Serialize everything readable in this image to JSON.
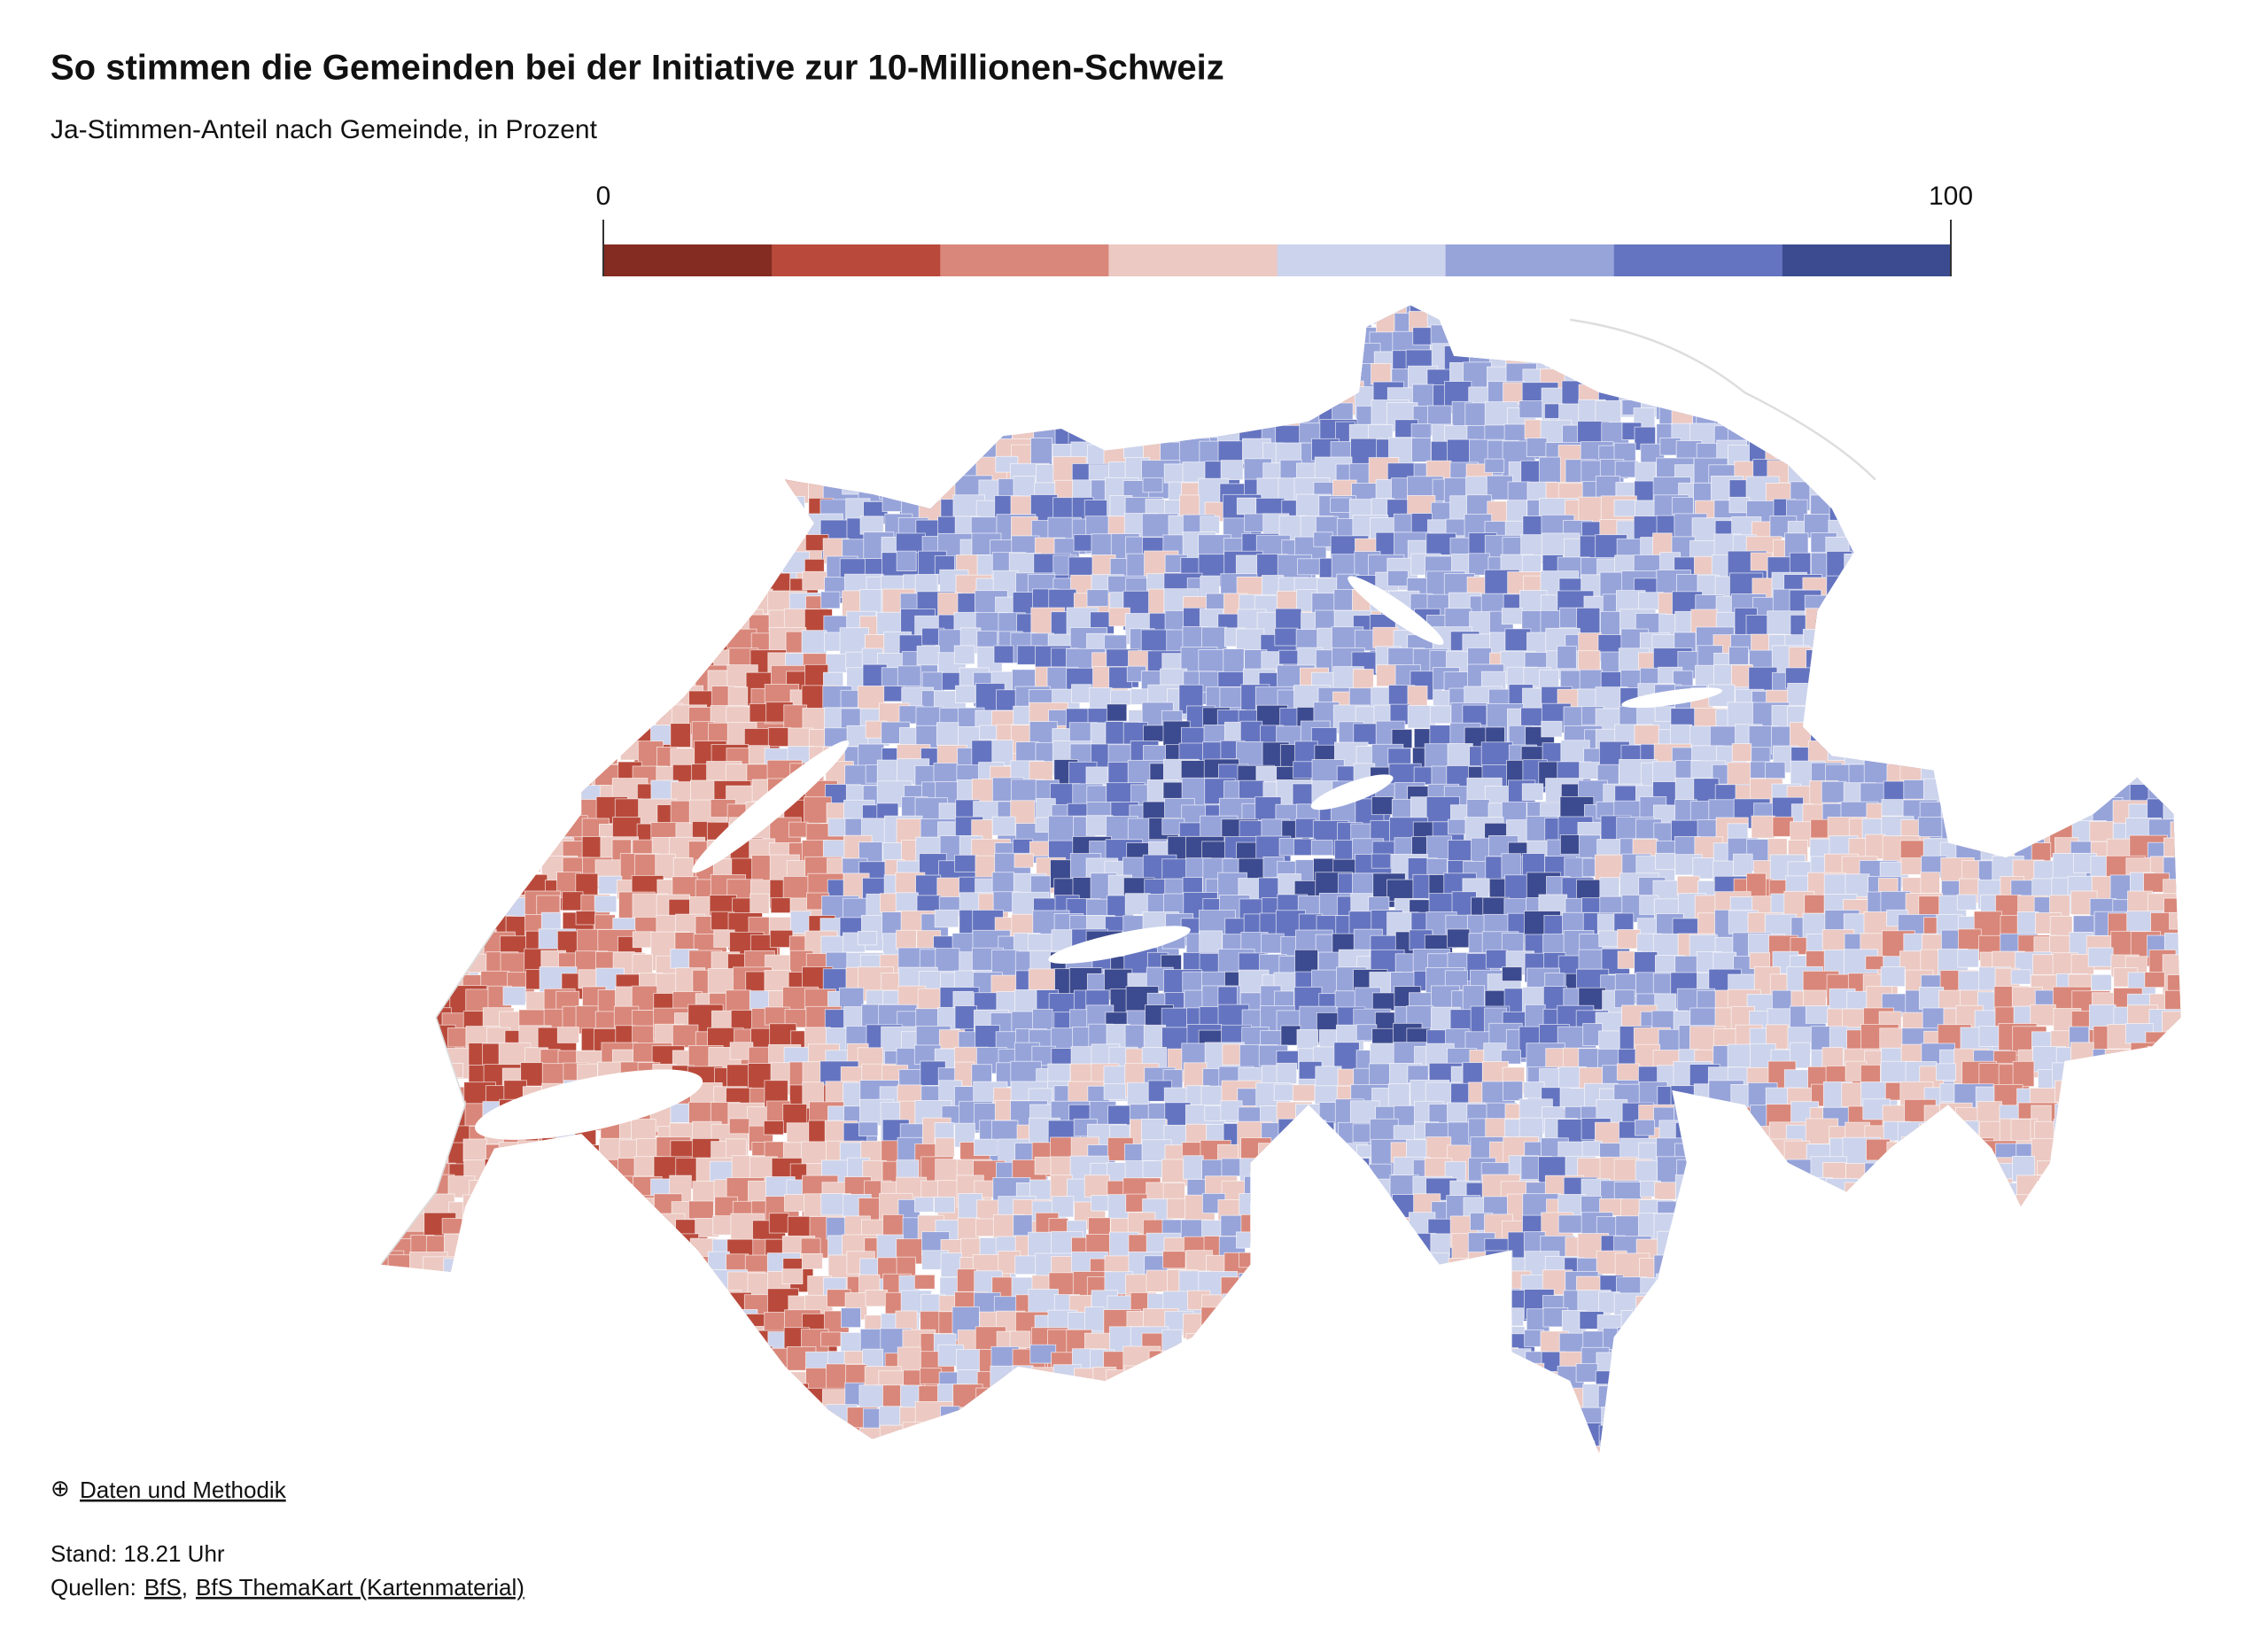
{
  "title": "So stimmen die Gemeinden bei der Initiative zur 10-Millionen-Schweiz",
  "subtitle": "Ja-Stimmen-Anteil nach Gemeinde, in Prozent",
  "legend": {
    "lim": [
      0,
      100
    ],
    "ticks": [
      0,
      100
    ],
    "colors": [
      "#842b22",
      "#b94a3b",
      "#d9877a",
      "#ecc9c2",
      "#ccd3ec",
      "#97a4da",
      "#6474c0",
      "#3c4a8f"
    ]
  },
  "footer": {
    "methods_link": "Daten und Methodik",
    "status": "Stand: 18.21 Uhr",
    "sources_label": "Quellen:",
    "sources": [
      "BfS",
      "BfS ThemaKart (Kartenmaterial)"
    ]
  }
}
